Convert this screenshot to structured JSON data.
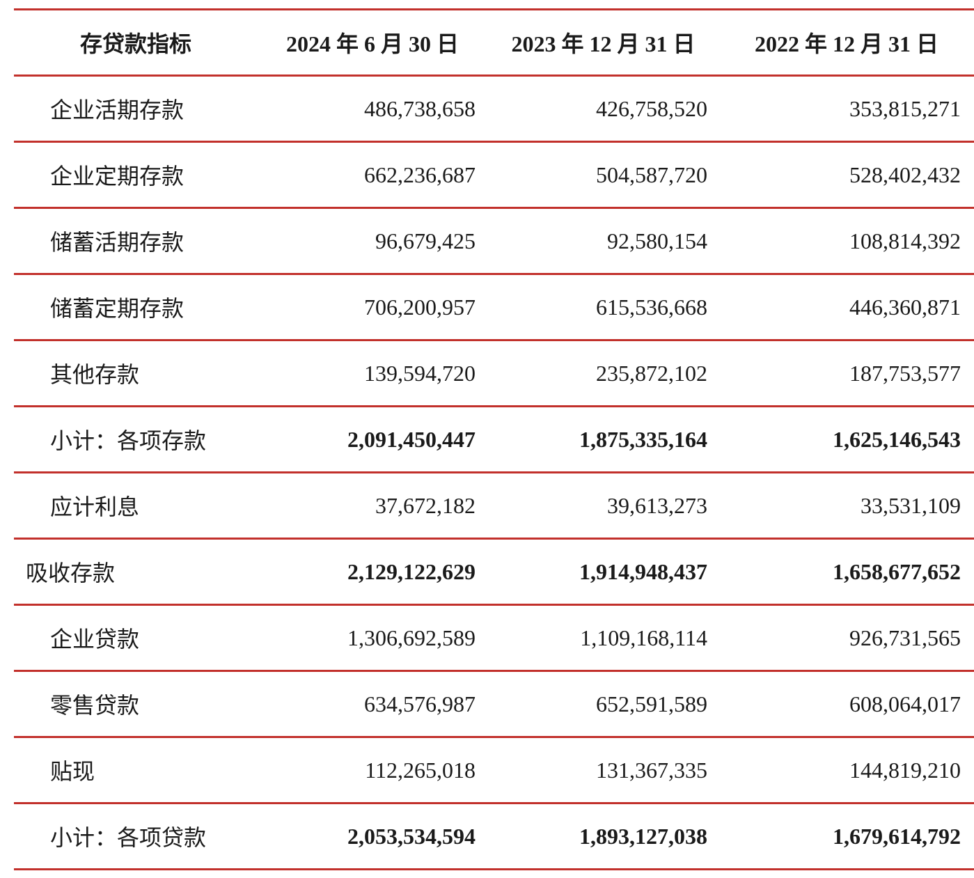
{
  "table": {
    "header": [
      "存贷款指标",
      "2024 年 6 月 30 日",
      "2023 年 12 月 31 日",
      "2022 年 12 月 31 日"
    ],
    "rows": [
      [
        "企业活期存款",
        "486,738,658",
        "426,758,520",
        "353,815,271"
      ],
      [
        "企业定期存款",
        "662,236,687",
        "504,587,720",
        "528,402,432"
      ],
      [
        "储蓄活期存款",
        "96,679,425",
        "92,580,154",
        "108,814,392"
      ],
      [
        "储蓄定期存款",
        "706,200,957",
        "615,536,668",
        "446,360,871"
      ],
      [
        "其他存款",
        "139,594,720",
        "235,872,102",
        "187,753,577"
      ],
      [
        "小计：各项存款",
        "2,091,450,447",
        "1,875,335,164",
        "1,625,146,543"
      ],
      [
        "应计利息",
        "37,672,182",
        "39,613,273",
        "33,531,109"
      ],
      [
        "吸收存款",
        "2,129,122,629",
        "1,914,948,437",
        "1,658,677,652"
      ],
      [
        "企业贷款",
        "1,306,692,589",
        "1,109,168,114",
        "926,731,565"
      ],
      [
        "零售贷款",
        "634,576,987",
        "652,591,589",
        "608,064,017"
      ],
      [
        "贴现",
        "112,265,018",
        "131,367,335",
        "144,819,210"
      ],
      [
        "小计：各项贷款",
        "2,053,534,594",
        "1,893,127,038",
        "1,679,614,792"
      ]
    ]
  }
}
